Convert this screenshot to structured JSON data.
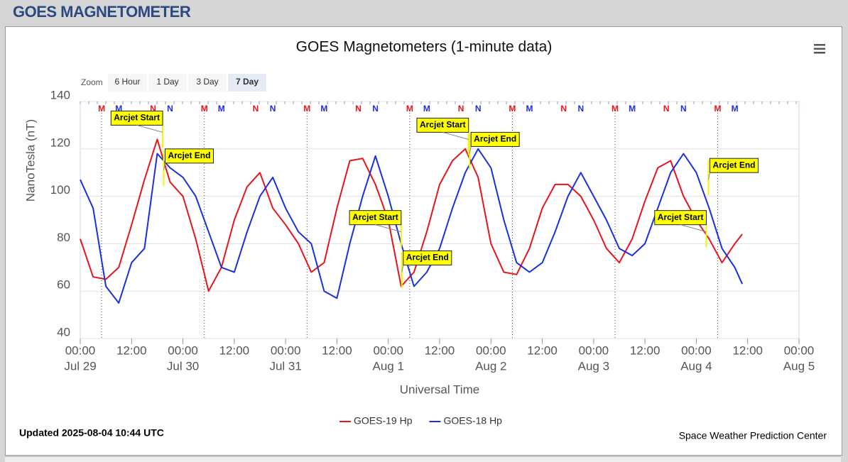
{
  "header": {
    "title": "GOES MAGNETOMETER"
  },
  "chart_data": {
    "type": "line",
    "title": "GOES Magnetometers (1-minute data)",
    "zoom": {
      "label": "Zoom",
      "buttons": [
        "6 Hour",
        "1 Day",
        "3 Day",
        "7 Day"
      ],
      "selected": 3
    },
    "xlabel": "Universal Time",
    "ylabel": "NanoTesla (nT)",
    "x": [
      "Jul 29 00:00",
      "Jul 29 03:00",
      "Jul 29 06:00",
      "Jul 29 09:00",
      "Jul 29 12:00",
      "Jul 29 15:00",
      "Jul 29 18:00",
      "Jul 29 21:00",
      "Jul 30 00:00",
      "Jul 30 03:00",
      "Jul 30 06:00",
      "Jul 30 09:00",
      "Jul 30 12:00",
      "Jul 30 15:00",
      "Jul 30 18:00",
      "Jul 30 21:00",
      "Jul 31 00:00",
      "Jul 31 03:00",
      "Jul 31 06:00",
      "Jul 31 09:00",
      "Jul 31 12:00",
      "Jul 31 15:00",
      "Jul 31 18:00",
      "Jul 31 21:00",
      "Aug 1 00:00",
      "Aug 1 03:00",
      "Aug 1 06:00",
      "Aug 1 09:00",
      "Aug 1 12:00",
      "Aug 1 15:00",
      "Aug 1 18:00",
      "Aug 1 21:00",
      "Aug 2 00:00",
      "Aug 2 03:00",
      "Aug 2 06:00",
      "Aug 2 09:00",
      "Aug 2 12:00",
      "Aug 2 15:00",
      "Aug 2 18:00",
      "Aug 2 21:00",
      "Aug 3 00:00",
      "Aug 3 03:00",
      "Aug 3 06:00",
      "Aug 3 09:00",
      "Aug 3 12:00",
      "Aug 3 15:00",
      "Aug 3 18:00",
      "Aug 3 21:00",
      "Aug 4 00:00",
      "Aug 4 03:00",
      "Aug 4 06:00",
      "Aug 4 09:00",
      "Aug 4 10:44"
    ],
    "series": [
      {
        "name": "GOES-19 Hp",
        "color": "#e8141c",
        "values": [
          82,
          66,
          65,
          70,
          88,
          107,
          124,
          106,
          100,
          82,
          60,
          70,
          90,
          104,
          110,
          95,
          88,
          80,
          68,
          72,
          95,
          115,
          116,
          105,
          90,
          62,
          68,
          85,
          105,
          115,
          120,
          108,
          80,
          68,
          67,
          78,
          95,
          105,
          105,
          100,
          90,
          78,
          72,
          82,
          98,
          112,
          115,
          100,
          90,
          82,
          72,
          80,
          84
        ]
      },
      {
        "name": "GOES-18 Hp",
        "color": "#1a2fe0",
        "values": [
          107,
          95,
          62,
          55,
          72,
          78,
          118,
          112,
          108,
          100,
          85,
          70,
          68,
          85,
          100,
          108,
          95,
          85,
          80,
          60,
          57,
          80,
          100,
          117,
          100,
          80,
          62,
          68,
          78,
          95,
          110,
          120,
          112,
          90,
          72,
          68,
          72,
          85,
          100,
          110,
          100,
          90,
          78,
          75,
          80,
          95,
          110,
          118,
          110,
          95,
          78,
          70,
          63
        ]
      }
    ],
    "xlim": [
      "Jul 29 00:00",
      "Aug 5 00:00"
    ],
    "xticks": [
      {
        "value": "Jul 29 00:00",
        "label": [
          "00:00",
          "Jul 29"
        ]
      },
      {
        "value": "Jul 29 12:00",
        "label": "12:00"
      },
      {
        "value": "Jul 30 00:00",
        "label": [
          "00:00",
          "Jul 30"
        ]
      },
      {
        "value": "Jul 30 12:00",
        "label": "12:00"
      },
      {
        "value": "Jul 31 00:00",
        "label": [
          "00:00",
          "Jul 31"
        ]
      },
      {
        "value": "Jul 31 12:00",
        "label": "12:00"
      },
      {
        "value": "Aug 1 00:00",
        "label": [
          "00:00",
          "Aug 1"
        ]
      },
      {
        "value": "Aug 1 12:00",
        "label": "12:00"
      },
      {
        "value": "Aug 2 00:00",
        "label": [
          "00:00",
          "Aug 2"
        ]
      },
      {
        "value": "Aug 2 12:00",
        "label": "12:00"
      },
      {
        "value": "Aug 3 00:00",
        "label": [
          "00:00",
          "Aug 3"
        ]
      },
      {
        "value": "Aug 3 12:00",
        "label": "12:00"
      },
      {
        "value": "Aug 4 00:00",
        "label": [
          "00:00",
          "Aug 4"
        ]
      },
      {
        "value": "Aug 4 12:00",
        "label": "12:00"
      },
      {
        "value": "Aug 5 00:00",
        "label": [
          "00:00",
          "Aug 5"
        ]
      }
    ],
    "ylim": [
      40,
      140
    ],
    "yticks": [
      40,
      60,
      80,
      100,
      120,
      140
    ],
    "grid": true,
    "markers": [
      {
        "label": "M",
        "color": "#e8141c",
        "x": "Jul 29 05:00"
      },
      {
        "label": "M",
        "color": "#1a2fe0",
        "x": "Jul 29 09:00"
      },
      {
        "label": "N",
        "color": "#e8141c",
        "x": "Jul 29 17:00"
      },
      {
        "label": "N",
        "color": "#1a2fe0",
        "x": "Jul 29 21:00"
      },
      {
        "label": "M",
        "color": "#e8141c",
        "x": "Jul 30 05:00"
      },
      {
        "label": "M",
        "color": "#1a2fe0",
        "x": "Jul 30 09:00"
      },
      {
        "label": "N",
        "color": "#e8141c",
        "x": "Jul 30 17:00"
      },
      {
        "label": "N",
        "color": "#1a2fe0",
        "x": "Jul 30 21:00"
      },
      {
        "label": "M",
        "color": "#e8141c",
        "x": "Jul 31 05:00"
      },
      {
        "label": "M",
        "color": "#1a2fe0",
        "x": "Jul 31 09:00"
      },
      {
        "label": "N",
        "color": "#e8141c",
        "x": "Jul 31 17:00"
      },
      {
        "label": "N",
        "color": "#1a2fe0",
        "x": "Jul 31 21:00"
      },
      {
        "label": "M",
        "color": "#e8141c",
        "x": "Aug 1 05:00"
      },
      {
        "label": "M",
        "color": "#1a2fe0",
        "x": "Aug 1 09:00"
      },
      {
        "label": "N",
        "color": "#e8141c",
        "x": "Aug 1 17:00"
      },
      {
        "label": "N",
        "color": "#1a2fe0",
        "x": "Aug 1 21:00"
      },
      {
        "label": "M",
        "color": "#e8141c",
        "x": "Aug 2 05:00"
      },
      {
        "label": "M",
        "color": "#1a2fe0",
        "x": "Aug 2 09:00"
      },
      {
        "label": "N",
        "color": "#e8141c",
        "x": "Aug 2 17:00"
      },
      {
        "label": "N",
        "color": "#1a2fe0",
        "x": "Aug 2 21:00"
      },
      {
        "label": "M",
        "color": "#e8141c",
        "x": "Aug 3 05:00"
      },
      {
        "label": "M",
        "color": "#1a2fe0",
        "x": "Aug 3 09:00"
      },
      {
        "label": "N",
        "color": "#e8141c",
        "x": "Aug 3 17:00"
      },
      {
        "label": "N",
        "color": "#1a2fe0",
        "x": "Aug 3 21:00"
      },
      {
        "label": "M",
        "color": "#e8141c",
        "x": "Aug 4 05:00"
      },
      {
        "label": "M",
        "color": "#1a2fe0",
        "x": "Aug 4 09:00"
      }
    ],
    "annotations": [
      {
        "label": "Arcjet Start",
        "x": "Jul 29 19:15",
        "y": 133
      },
      {
        "label": "Arcjet End",
        "x": "Jul 29 19:30",
        "y": 117
      },
      {
        "label": "Arcjet Start",
        "x": "Aug 1 03:00",
        "y": 91
      },
      {
        "label": "Arcjet End",
        "x": "Aug 1 03:10",
        "y": 74
      },
      {
        "label": "Arcjet Start",
        "x": "Aug 1 18:45",
        "y": 130
      },
      {
        "label": "Arcjet End",
        "x": "Aug 1 19:00",
        "y": 124
      },
      {
        "label": "Arcjet Start",
        "x": "Aug 4 02:20",
        "y": 91
      },
      {
        "label": "Arcjet End",
        "x": "Aug 4 02:50",
        "y": 113
      }
    ],
    "updated": "Updated 2025-08-04 10:44 UTC",
    "credit": "Space Weather Prediction Center"
  }
}
